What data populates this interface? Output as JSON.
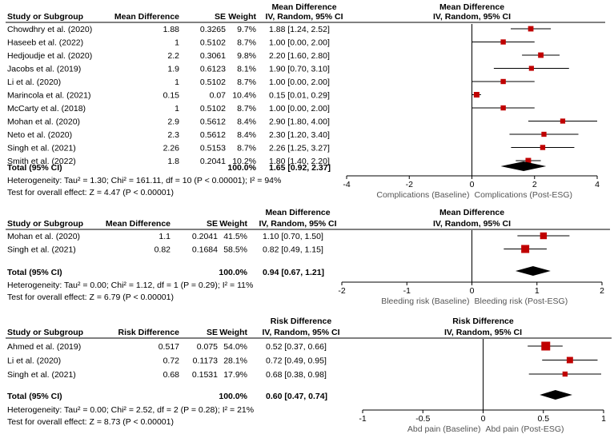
{
  "chart_data": [
    {
      "type": "forest",
      "columns": {
        "study": "Study or Subgroup",
        "effect": "Mean Difference",
        "se": "SE",
        "weight": "Weight",
        "ci_title": "Mean Difference",
        "ci_subtitle": "IV, Random, 95% CI",
        "plot_title": "Mean Difference",
        "plot_subtitle": "IV, Random, 95% CI"
      },
      "rows": [
        {
          "study": "Chowdhry et al. (2020)",
          "effect": "1.88",
          "se": "0.3265",
          "weight": "9.7%",
          "ci": "1.88 [1.24, 2.52]",
          "est": 1.88,
          "lo": 1.24,
          "hi": 2.52,
          "w": 9.7
        },
        {
          "study": "Haseeb et al. (2022)",
          "effect": "1",
          "se": "0.5102",
          "weight": "8.7%",
          "ci": "1.00 [0.00, 2.00]",
          "est": 1.0,
          "lo": 0.0,
          "hi": 2.0,
          "w": 8.7
        },
        {
          "study": "Hedjoudje et al. (2020)",
          "effect": "2.2",
          "se": "0.3061",
          "weight": "9.8%",
          "ci": "2.20 [1.60, 2.80]",
          "est": 2.2,
          "lo": 1.6,
          "hi": 2.8,
          "w": 9.8
        },
        {
          "study": "Jacobs et al. (2019)",
          "effect": "1.9",
          "se": "0.6123",
          "weight": "8.1%",
          "ci": "1.90 [0.70, 3.10]",
          "est": 1.9,
          "lo": 0.7,
          "hi": 3.1,
          "w": 8.1
        },
        {
          "study": "Li et al. (2020)",
          "effect": "1",
          "se": "0.5102",
          "weight": "8.7%",
          "ci": "1.00 [0.00, 2.00]",
          "est": 1.0,
          "lo": 0.0,
          "hi": 2.0,
          "w": 8.7
        },
        {
          "study": "Marincola et al. (2021)",
          "effect": "0.15",
          "se": "0.07",
          "weight": "10.4%",
          "ci": "0.15 [0.01, 0.29]",
          "est": 0.15,
          "lo": 0.01,
          "hi": 0.29,
          "w": 10.4
        },
        {
          "study": "McCarty et al. (2018)",
          "effect": "1",
          "se": "0.5102",
          "weight": "8.7%",
          "ci": "1.00 [0.00, 2.00]",
          "est": 1.0,
          "lo": 0.0,
          "hi": 2.0,
          "w": 8.7
        },
        {
          "study": "Mohan et al. (2020)",
          "effect": "2.9",
          "se": "0.5612",
          "weight": "8.4%",
          "ci": "2.90 [1.80, 4.00]",
          "est": 2.9,
          "lo": 1.8,
          "hi": 4.0,
          "w": 8.4
        },
        {
          "study": "Neto et al. (2020)",
          "effect": "2.3",
          "se": "0.5612",
          "weight": "8.4%",
          "ci": "2.30 [1.20, 3.40]",
          "est": 2.3,
          "lo": 1.2,
          "hi": 3.4,
          "w": 8.4
        },
        {
          "study": "Singh et al. (2021)",
          "effect": "2.26",
          "se": "0.5153",
          "weight": "8.7%",
          "ci": "2.26 [1.25, 3.27]",
          "est": 2.26,
          "lo": 1.25,
          "hi": 3.27,
          "w": 8.7
        },
        {
          "study": "Smith et al. (2022)",
          "effect": "1.8",
          "se": "0.2041",
          "weight": "10.2%",
          "ci": "1.80 [1.40, 2.20]",
          "est": 1.8,
          "lo": 1.4,
          "hi": 2.2,
          "w": 10.2
        }
      ],
      "total": {
        "label": "Total (95% CI)",
        "weight": "100.0%",
        "ci": "1.65 [0.92, 2.37]",
        "est": 1.65,
        "lo": 0.92,
        "hi": 2.37
      },
      "heterogeneity": "Heterogeneity: Tau² = 1.30; Chi² = 161.11, df = 10 (P < 0.00001); I² = 94%",
      "overall_effect": "Test for overall effect: Z = 4.47 (P < 0.00001)",
      "x_ticks": [
        -4,
        -2,
        0,
        2,
        4
      ],
      "x_tick_labels": [
        "-4",
        "-2",
        "0",
        "2",
        "4"
      ],
      "xlim": [
        -4,
        4
      ],
      "favours_left": "Complications (Baseline)",
      "favours_right": "Complications (Post-ESG)",
      "marker_color": "#c00000"
    },
    {
      "type": "forest",
      "columns": {
        "study": "Study or Subgroup",
        "effect": "Mean Difference",
        "se": "SE",
        "weight": "Weight",
        "ci_title": "Mean Difference",
        "ci_subtitle": "IV, Random, 95% CI",
        "plot_title": "Mean Difference",
        "plot_subtitle": "IV, Random, 95% CI"
      },
      "rows": [
        {
          "study": "Mohan et al. (2020)",
          "effect": "1.1",
          "se": "0.2041",
          "weight": "41.5%",
          "ci": "1.10 [0.70, 1.50]",
          "est": 1.1,
          "lo": 0.7,
          "hi": 1.5,
          "w": 41.5
        },
        {
          "study": "Singh et al. (2021)",
          "effect": "0.82",
          "se": "0.1684",
          "weight": "58.5%",
          "ci": "0.82 [0.49, 1.15]",
          "est": 0.82,
          "lo": 0.49,
          "hi": 1.15,
          "w": 58.5
        }
      ],
      "total": {
        "label": "Total (95% CI)",
        "weight": "100.0%",
        "ci": "0.94 [0.67, 1.21]",
        "est": 0.94,
        "lo": 0.67,
        "hi": 1.21
      },
      "heterogeneity": "Heterogeneity: Tau² = 0.00; Chi² = 1.12, df = 1 (P = 0.29); I² = 11%",
      "overall_effect": "Test for overall effect: Z = 6.79 (P < 0.00001)",
      "x_ticks": [
        -2,
        -1,
        0,
        1,
        2
      ],
      "x_tick_labels": [
        "-2",
        "-1",
        "0",
        "1",
        "2"
      ],
      "xlim": [
        -2,
        2
      ],
      "favours_left": "Bleeding risk (Baseline)",
      "favours_right": "Bleeding risk (Post-ESG)",
      "marker_color": "#c00000"
    },
    {
      "type": "forest",
      "columns": {
        "study": "Study or Subgroup",
        "effect": "Risk Difference",
        "se": "SE",
        "weight": "Weight",
        "ci_title": "Risk Difference",
        "ci_subtitle": "IV, Random, 95% CI",
        "plot_title": "Risk Difference",
        "plot_subtitle": "IV, Random, 95% CI"
      },
      "rows": [
        {
          "study": "Ahmed et al. (2019)",
          "effect": "0.517",
          "se": "0.075",
          "weight": "54.0%",
          "ci": "0.52 [0.37, 0.66]",
          "est": 0.52,
          "lo": 0.37,
          "hi": 0.66,
          "w": 54.0
        },
        {
          "study": "Li et al. (2020)",
          "effect": "0.72",
          "se": "0.1173",
          "weight": "28.1%",
          "ci": "0.72 [0.49, 0.95]",
          "est": 0.72,
          "lo": 0.49,
          "hi": 0.95,
          "w": 28.1
        },
        {
          "study": "Singh et al. (2021)",
          "effect": "0.68",
          "se": "0.1531",
          "weight": "17.9%",
          "ci": "0.68 [0.38, 0.98]",
          "est": 0.68,
          "lo": 0.38,
          "hi": 0.98,
          "w": 17.9
        }
      ],
      "total": {
        "label": "Total (95% CI)",
        "weight": "100.0%",
        "ci": "0.60 [0.47, 0.74]",
        "est": 0.6,
        "lo": 0.47,
        "hi": 0.74
      },
      "heterogeneity": "Heterogeneity: Tau² = 0.00; Chi² = 2.52, df = 2 (P = 0.28); I² = 21%",
      "overall_effect": "Test for overall effect: Z = 8.73 (P < 0.00001)",
      "x_ticks": [
        -1,
        -0.5,
        0,
        0.5,
        1
      ],
      "x_tick_labels": [
        "-1",
        "-0.5",
        "0",
        "0.5",
        "1"
      ],
      "xlim": [
        -1,
        1
      ],
      "favours_left": "Abd pain (Baseline)",
      "favours_right": "Abd pain (Post-ESG)",
      "marker_color": "#c00000"
    }
  ]
}
